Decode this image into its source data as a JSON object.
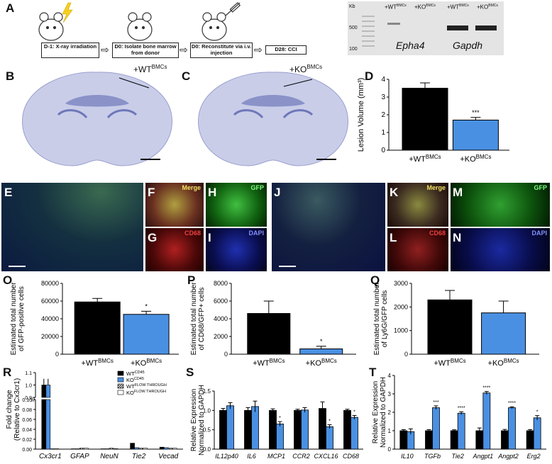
{
  "panels": {
    "A": "A",
    "B": "B",
    "C": "C",
    "D": "D",
    "E": "E",
    "F": "F",
    "G": "G",
    "H": "H",
    "I": "I",
    "J": "J",
    "K": "K",
    "L": "L",
    "M": "M",
    "N": "N",
    "O": "O",
    "P": "P",
    "Q": "Q",
    "R": "R",
    "S": "S",
    "T": "T"
  },
  "schematic": {
    "steps": [
      "D-1: X-ray irradiation",
      "D0: Isolate bone marrow from donor",
      "D0: Reconstitute via i.v. injection",
      "D28: CCI"
    ]
  },
  "gel": {
    "kb_label": "Kb",
    "markers": [
      "500",
      "100"
    ],
    "lanes": [
      "+WT",
      "BMCs",
      "+KO",
      "BMCs"
    ],
    "genes": [
      "Epha4",
      "Gapdh"
    ]
  },
  "sections": {
    "B_label": "+WT",
    "B_sup": "BMCs",
    "C_label": "+KO",
    "C_sup": "BMCs"
  },
  "micro": {
    "F": "Merge",
    "G": "CD68",
    "H": "GFP",
    "I": "DAPI",
    "K": "Merge",
    "L": "CD68",
    "M": "GFP",
    "N": "DAPI"
  },
  "colors": {
    "black_bar": "#000000",
    "blue_bar": "#4a90e2"
  },
  "group_labels": {
    "wt": "+WT",
    "ko": "+KO",
    "sup": "BMCs"
  },
  "chart_data": [
    {
      "id": "D",
      "type": "bar",
      "categories": [
        "+WT BMCs",
        "+KO BMCs"
      ],
      "values": [
        3.5,
        1.7
      ],
      "errors": [
        0.3,
        0.15
      ],
      "ylabel": "Lesion Volume (mm³)",
      "ylim": [
        0,
        4
      ],
      "yticks": [
        "0",
        "1",
        "2",
        "3",
        "4"
      ],
      "significance": [
        "",
        "***"
      ]
    },
    {
      "id": "O",
      "type": "bar",
      "categories": [
        "+WT BMCs",
        "+KO BMCs"
      ],
      "values": [
        59000,
        45000
      ],
      "errors": [
        4000,
        3500
      ],
      "ylabel": "Estimated total number of GFP-positive cells",
      "ylim": [
        0,
        80000
      ],
      "yticks": [
        "0",
        "20000",
        "40000",
        "60000",
        "80000"
      ],
      "significance": [
        "",
        "*"
      ]
    },
    {
      "id": "P",
      "type": "bar",
      "categories": [
        "+WT BMCs",
        "+KO BMCs"
      ],
      "values": [
        4600,
        600
      ],
      "errors": [
        1400,
        300
      ],
      "ylabel": "Estimated total number of CD68/GFP+ cells",
      "ylim": [
        0,
        8000
      ],
      "yticks": [
        "0",
        "2000",
        "4000",
        "6000",
        "8000"
      ],
      "significance": [
        "",
        "*"
      ]
    },
    {
      "id": "Q",
      "type": "bar",
      "categories": [
        "+WT BMCs",
        "+KO BMCs"
      ],
      "values": [
        2300,
        1750
      ],
      "errors": [
        400,
        500
      ],
      "ylabel": "Estimated total number of Ly6G/GFP cells",
      "ylim": [
        0,
        3000
      ],
      "yticks": [
        "0",
        "1000",
        "2000",
        "3000"
      ],
      "significance": [
        "",
        ""
      ]
    },
    {
      "id": "R",
      "type": "bar",
      "categories": [
        "Cx3cr1",
        "GFAP",
        "NeuN",
        "Tie2",
        "Vecad"
      ],
      "series": [
        {
          "name": "WT CD45",
          "values": [
            1.0,
            0.0,
            0.0,
            0.012,
            0.004
          ]
        },
        {
          "name": "KO CD45",
          "values": [
            1.0,
            0.0,
            0.0,
            0.003,
            0.003
          ]
        },
        {
          "name": "WT FLOW THROUGH",
          "values": [
            0.0,
            0.002,
            0.002,
            0.002,
            0.002
          ]
        },
        {
          "name": "KO FLOW THROUGH",
          "values": [
            0.0,
            0.002,
            0.001,
            0.002,
            0.002
          ]
        }
      ],
      "legend": [
        {
          "main": "WT",
          "sup": "CD45"
        },
        {
          "main": "KO",
          "sup": "CD45"
        },
        {
          "main": "WT",
          "sup": "FLOW THROUGH"
        },
        {
          "main": "KO",
          "sup": "FLOW THROUGH"
        }
      ],
      "ylabel": "Fold change (Relative to Cx3cr1)",
      "upper_yticks": [
        "1.1",
        "1.0",
        "0.9"
      ],
      "lower_yticks": [
        "0.10",
        "0.08",
        "0.06",
        "0.04",
        "0.02",
        "0.00"
      ],
      "axis_break": "true"
    },
    {
      "id": "S",
      "type": "bar",
      "categories": [
        "IL12p40",
        "IL6",
        "MCP1",
        "CCR2",
        "CXCL16",
        "CD68"
      ],
      "series": [
        {
          "name": "+WT BMCs",
          "values": [
            1.0,
            1.0,
            1.0,
            1.0,
            1.05,
            1.0
          ]
        },
        {
          "name": "+KO BMCs",
          "values": [
            1.12,
            1.1,
            0.65,
            1.01,
            0.58,
            0.82
          ]
        }
      ],
      "errors_wt": [
        0.05,
        0.07,
        0.04,
        0.03,
        0.17,
        0.03
      ],
      "errors_ko": [
        0.08,
        0.14,
        0.06,
        0.06,
        0.05,
        0.05
      ],
      "significance": [
        "",
        "",
        "*",
        "",
        "*",
        "*"
      ],
      "ylabel": "Relative Expression Normalized to GAPDH",
      "ylim": [
        0,
        1.5
      ],
      "yticks": [
        "0.0",
        "0.5",
        "1.0",
        "1.5"
      ]
    },
    {
      "id": "T",
      "type": "bar",
      "categories": [
        "IL10",
        "TGFb",
        "Tie2",
        "Angpt1",
        "Angpt2",
        "Erg2"
      ],
      "series": [
        {
          "name": "+WT BMCs",
          "values": [
            1.0,
            1.0,
            1.0,
            1.0,
            1.0,
            1.0
          ]
        },
        {
          "name": "+KO BMCs",
          "values": [
            0.95,
            2.25,
            1.95,
            3.05,
            2.25,
            1.7
          ]
        }
      ],
      "errors_wt": [
        0.06,
        0.06,
        0.05,
        0.15,
        0.07,
        0.06
      ],
      "errors_ko": [
        0.15,
        0.1,
        0.08,
        0.08,
        0.05,
        0.12
      ],
      "significance": [
        "",
        "***",
        "****",
        "****",
        "****",
        "*"
      ],
      "ylabel": "Relative Expression Normalized to GAPDH",
      "ylim": [
        0,
        4
      ],
      "yticks": [
        "0",
        "1",
        "2",
        "3",
        "4"
      ]
    }
  ]
}
